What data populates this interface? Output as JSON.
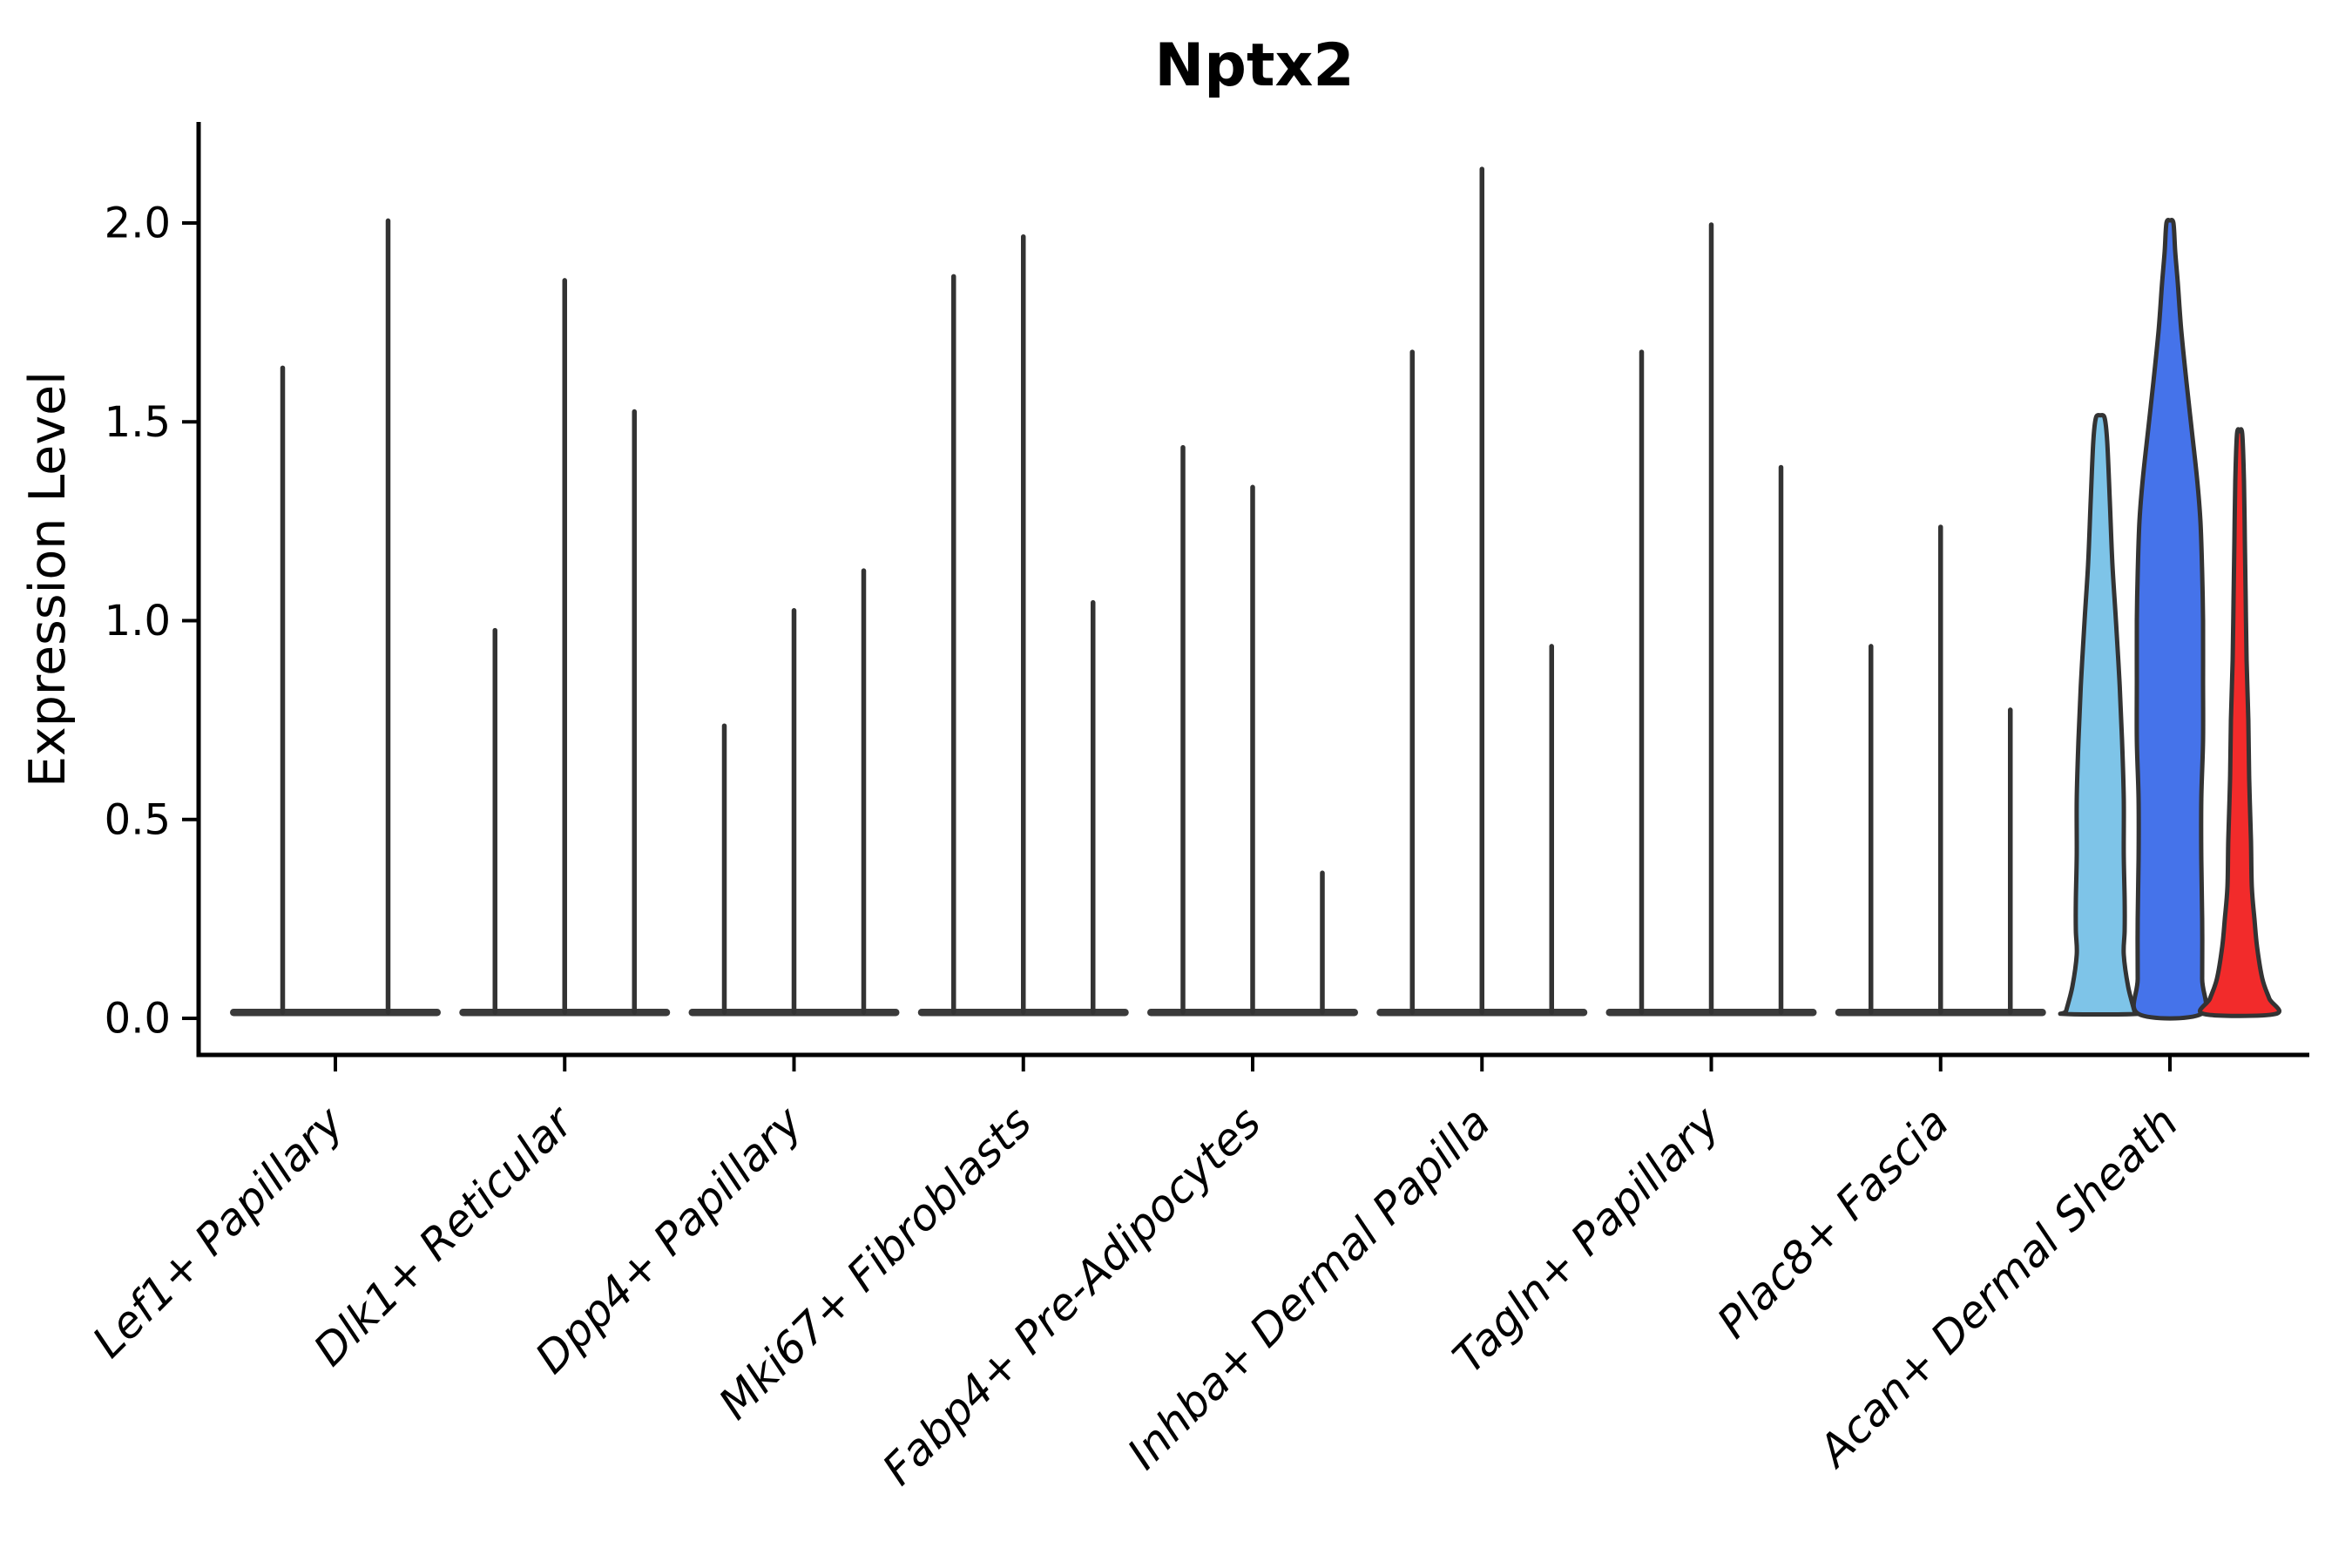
{
  "title": "Nptx2",
  "y_axis": {
    "label": "Expression Level",
    "tick_labels": [
      "0.0",
      "0.5",
      "1.0",
      "1.5",
      "2.0"
    ]
  },
  "chart_data": {
    "type": "violin",
    "title": "Nptx2",
    "ylabel": "Expression Level",
    "xlabel": "",
    "ylim": [
      0,
      2.25
    ],
    "yticks": [
      0.0,
      0.5,
      1.0,
      1.5,
      2.0
    ],
    "grid": false,
    "legend_position": "none",
    "outline_color": "#333333",
    "baseline_color": "#3a3a3a",
    "series_colors": [
      "#7EC4E8",
      "#4573EA",
      "#F22B2B"
    ],
    "categories": [
      "Lef1+ Papillary",
      "Dlk1+ Reticular",
      "Dpp4+ Papillary",
      "Mki67+ Fibroblasts",
      "Fabp4+ Pre-Adipocytes",
      "Inhba+ Dermal Papilla",
      "Tagln+ Papillary",
      "Plac8+ Fascia",
      "Acan+ Dermal Sheath"
    ],
    "groups": [
      {
        "label": "Lef1+ Papillary",
        "violins": [
          {
            "series": 0,
            "peak": 1.64
          },
          {
            "series": 1,
            "peak": 2.01
          }
        ]
      },
      {
        "label": "Dlk1+ Reticular",
        "violins": [
          {
            "series": 0,
            "peak": 0.98
          },
          {
            "series": 1,
            "peak": 1.86
          },
          {
            "series": 2,
            "peak": 1.53
          }
        ]
      },
      {
        "label": "Dpp4+ Papillary",
        "violins": [
          {
            "series": 0,
            "peak": 0.74
          },
          {
            "series": 1,
            "peak": 1.03
          },
          {
            "series": 2,
            "peak": 1.13
          }
        ]
      },
      {
        "label": "Mki67+ Fibroblasts",
        "violins": [
          {
            "series": 0,
            "peak": 1.87
          },
          {
            "series": 1,
            "peak": 1.97
          },
          {
            "series": 2,
            "peak": 1.05
          }
        ]
      },
      {
        "label": "Fabp4+ Pre-Adipocytes",
        "violins": [
          {
            "series": 0,
            "peak": 1.44
          },
          {
            "series": 1,
            "peak": 1.34
          },
          {
            "series": 2,
            "peak": 0.37
          }
        ]
      },
      {
        "label": "Inhba+ Dermal Papilla",
        "violins": [
          {
            "series": 0,
            "peak": 1.68
          },
          {
            "series": 1,
            "peak": 2.14
          },
          {
            "series": 2,
            "peak": 0.94
          }
        ]
      },
      {
        "label": "Tagln+ Papillary",
        "violins": [
          {
            "series": 0,
            "peak": 1.68
          },
          {
            "series": 1,
            "peak": 2.0
          },
          {
            "series": 2,
            "peak": 1.39
          }
        ]
      },
      {
        "label": "Plac8+ Fascia",
        "violins": [
          {
            "series": 0,
            "peak": 0.94
          },
          {
            "series": 1,
            "peak": 1.24
          },
          {
            "series": 2,
            "peak": 0.78
          }
        ]
      },
      {
        "label": "Acan+ Dermal Sheath",
        "violins": [
          {
            "series": 0,
            "peak": 1.51,
            "profile": [
              [
                1.51,
                5
              ],
              [
                1.45,
                8
              ],
              [
                1.3,
                11
              ],
              [
                1.14,
                14
              ],
              [
                1.0,
                18
              ],
              [
                0.85,
                22
              ],
              [
                0.7,
                25
              ],
              [
                0.55,
                27
              ],
              [
                0.41,
                27
              ],
              [
                0.3,
                28
              ],
              [
                0.22,
                28
              ],
              [
                0.16,
                27
              ],
              [
                0.08,
                32
              ],
              [
                0.02,
                39
              ],
              [
                0.0,
                40
              ]
            ]
          },
          {
            "series": 1,
            "peak": 2.0,
            "profile": [
              [
                2.0,
                4
              ],
              [
                1.93,
                6
              ],
              [
                1.85,
                9
              ],
              [
                1.73,
                13
              ],
              [
                1.6,
                19
              ],
              [
                1.48,
                25
              ],
              [
                1.36,
                31
              ],
              [
                1.25,
                35
              ],
              [
                1.12,
                37
              ],
              [
                1.0,
                38
              ],
              [
                0.85,
                38
              ],
              [
                0.7,
                38
              ],
              [
                0.55,
                36
              ],
              [
                0.4,
                36
              ],
              [
                0.25,
                37
              ],
              [
                0.1,
                37
              ],
              [
                0.0,
                36
              ]
            ]
          },
          {
            "series": 2,
            "peak": 1.47,
            "profile": [
              [
                1.47,
                3
              ],
              [
                1.35,
                5
              ],
              [
                1.2,
                6
              ],
              [
                1.05,
                7
              ],
              [
                0.9,
                8
              ],
              [
                0.75,
                10
              ],
              [
                0.6,
                11
              ],
              [
                0.45,
                13
              ],
              [
                0.33,
                14
              ],
              [
                0.25,
                17
              ],
              [
                0.18,
                20
              ],
              [
                0.1,
                26
              ],
              [
                0.05,
                34
              ],
              [
                0.0,
                41
              ]
            ]
          }
        ]
      }
    ]
  }
}
